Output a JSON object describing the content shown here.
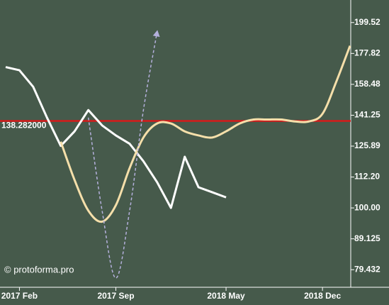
{
  "chart_data": {
    "type": "line",
    "log_y": true,
    "ylim": [
      74.4,
      217
    ],
    "yticks": [
      {
        "value": 199.52,
        "label": "199.52"
      },
      {
        "value": 177.82,
        "label": "177.82"
      },
      {
        "value": 158.48,
        "label": "158.48"
      },
      {
        "value": 141.25,
        "label": "141.25"
      },
      {
        "value": 125.89,
        "label": "125.89"
      },
      {
        "value": 112.2,
        "label": "112.20"
      },
      {
        "value": 100,
        "label": "100.00"
      },
      {
        "value": 89.125,
        "label": "89.125"
      },
      {
        "value": 79.432,
        "label": "79.432"
      }
    ],
    "xlim": [
      "2017-01",
      "2019-02"
    ],
    "xticks": [
      {
        "value": "2017-02",
        "label": "2017 Feb"
      },
      {
        "value": "2017-09",
        "label": "2017 Sep"
      },
      {
        "value": "2018-05",
        "label": "2018 May"
      },
      {
        "value": "2018-12",
        "label": "2018 Dec"
      }
    ],
    "hline": {
      "value": 138.282,
      "label": "138.282000",
      "color": "#d61a1a"
    },
    "watermark": "© protoforma.pro",
    "series": [
      {
        "color": "#ffffff",
        "width": 3,
        "smooth": false,
        "x": [
          "2017-01",
          "2017-02",
          "2017-03",
          "2017-04",
          "2017-05",
          "2017-06",
          "2017-07",
          "2017-08",
          "2017-09",
          "2017-10",
          "2017-11",
          "2017-12",
          "2018-01",
          "2018-02",
          "2018-03",
          "2018-04",
          "2018-05"
        ],
        "values": [
          169,
          167,
          157,
          140,
          126,
          133,
          144,
          136,
          131,
          127,
          119,
          110,
          100,
          121,
          108,
          106,
          104
        ]
      },
      {
        "color": "#f5dfaa",
        "width": 3,
        "smooth": true,
        "x": [
          "2017-05",
          "2017-06",
          "2017-07",
          "2017-08",
          "2017-09",
          "2017-10",
          "2017-11",
          "2017-12",
          "2018-01",
          "2018-02",
          "2018-03",
          "2018-04",
          "2018-05",
          "2018-06",
          "2018-07",
          "2018-08",
          "2018-09",
          "2018-10",
          "2018-11",
          "2018-12",
          "2019-01",
          "2019-02"
        ],
        "values": [
          128,
          111,
          99,
          95,
          101,
          116,
          130,
          137,
          137,
          133,
          131,
          130,
          133,
          137,
          139,
          139,
          139,
          138,
          138,
          142,
          160,
          183
        ]
      },
      {
        "color": "#b4b0dc",
        "width": 1.5,
        "smooth": true,
        "dashed": true,
        "arrow": true,
        "x": [
          "2017-07",
          "2017-08",
          "2017-09",
          "2017-10",
          "2017-11",
          "2017-12"
        ],
        "values": [
          140,
          99,
          77,
          99,
          144,
          193
        ]
      }
    ]
  }
}
